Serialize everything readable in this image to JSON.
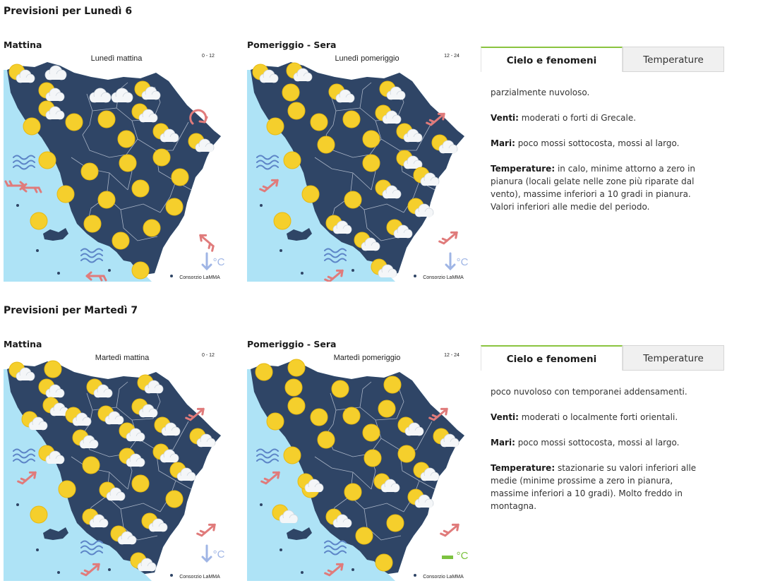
{
  "days": [
    {
      "title": "Previsioni per Lunedì 6",
      "morning": {
        "label": "Mattina",
        "map_title": "Lunedì mattina",
        "range": "0 - 12",
        "credit": "Consorzio LaMMA",
        "temp_symbol": "°C",
        "temp_trend": "down"
      },
      "afternoon": {
        "label": "Pomeriggio - Sera",
        "map_title": "Lunedì pomeriggio",
        "range": "12 - 24",
        "credit": "Consorzio LaMMA",
        "temp_symbol": "°C",
        "temp_trend": "down"
      },
      "tabs": {
        "sky": "Cielo e fenomeni",
        "temps": "Temperature"
      },
      "forecast": {
        "sky": "parzialmente nuvoloso.",
        "winds_label": "Venti:",
        "winds": " moderati o forti di Grecale.",
        "seas_label": "Mari:",
        "seas": " poco mossi sottocosta, mossi al largo.",
        "temps_label": "Temperature:",
        "temps": " in calo, minime attorno a zero in pianura (locali gelate nelle zone più riparate dal vento), massime inferiori a 10 gradi in pianura. Valori inferiori alle medie del periodo."
      }
    },
    {
      "title": "Previsioni per Martedì 7",
      "morning": {
        "label": "Mattina",
        "map_title": "Martedì mattina",
        "range": "0 - 12",
        "credit": "Consorzio LaMMA",
        "temp_symbol": "°C",
        "temp_trend": "down"
      },
      "afternoon": {
        "label": "Pomeriggio - Sera",
        "map_title": "Martedì pomeriggio",
        "range": "12 - 24",
        "credit": "Consorzio LaMMA",
        "temp_symbol": "°C",
        "temp_trend": "stable"
      },
      "tabs": {
        "sky": "Cielo e fenomeni",
        "temps": "Temperature"
      },
      "forecast": {
        "sky": "poco nuvoloso con temporanei addensamenti.",
        "winds_label": "Venti:",
        "winds": " moderati o localmente forti orientali.",
        "seas_label": "Mari:",
        "seas": " poco mossi sottocosta, mossi al largo.",
        "temps_label": "Temperature:",
        "temps": " stazionarie su valori inferiori alle medie (minime prossime a zero in pianura, massime inferiori a 10 gradi). Molto freddo in montagna."
      }
    }
  ],
  "colors": {
    "sea": "#aee3f6",
    "land": "#2f4566",
    "sun": "#f5cf2c",
    "wind_arrow": "#e07b7b",
    "waves": "#5d85c7",
    "temp_down": "#9fb5e5",
    "temp_stable": "#7cc23f",
    "accent": "#8ac43f"
  }
}
